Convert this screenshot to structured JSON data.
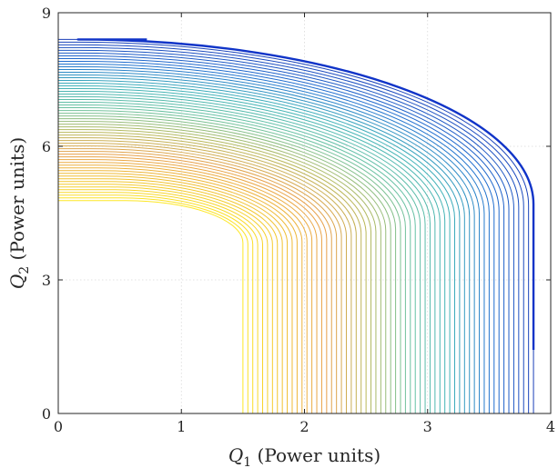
{
  "chart_data": {
    "type": "line",
    "xlabel": {
      "symbol": "Q",
      "sub": "1",
      "text": " (Power units)"
    },
    "ylabel": {
      "symbol": "Q",
      "sub": "2",
      "text": " (Power units)"
    },
    "xlim": [
      0,
      4
    ],
    "ylim": [
      0,
      9
    ],
    "xticks": [
      0,
      1,
      2,
      3,
      4
    ],
    "yticks": [
      0,
      3,
      6,
      9
    ],
    "grid": true,
    "contour": {
      "count": 60,
      "inner": {
        "q1": 1.5,
        "q2": 4.78
      },
      "outer": {
        "q1": 3.86,
        "q2": 8.4
      },
      "inner_corner_radius": 0.95,
      "outer_corner_radius": 3.7,
      "colors": [
        "#fde725",
        "#f0c030",
        "#e8a04a",
        "#b8b85a",
        "#6cc2a0",
        "#3fb2b8",
        "#1f6fd0",
        "#1a3fb8"
      ]
    },
    "boundary_color": "#1034c8"
  }
}
